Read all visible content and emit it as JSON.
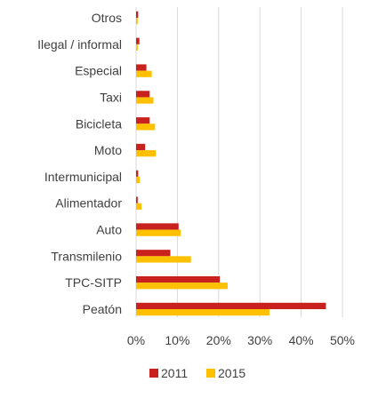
{
  "chart_data": {
    "type": "bar",
    "orientation": "horizontal",
    "categories": [
      "Otros",
      "Ilegal / informal",
      "Especial",
      "Taxi",
      "Bicicleta",
      "Moto",
      "Intermunicipal",
      "Alimentador",
      "Auto",
      "Transmilenio",
      "TPC-SITP",
      "Peatón"
    ],
    "series": [
      {
        "name": "2011",
        "color": "#c9211e",
        "values": [
          0.5,
          0.8,
          2.5,
          3.3,
          3.3,
          2.2,
          0.5,
          0.4,
          10.3,
          8.3,
          20.3,
          46.0
        ]
      },
      {
        "name": "2015",
        "color": "#ffc000",
        "values": [
          0.4,
          0.4,
          3.8,
          4.2,
          4.6,
          4.8,
          0.9,
          1.3,
          10.8,
          13.3,
          22.2,
          32.3
        ]
      }
    ],
    "xlim": [
      0,
      50
    ],
    "x_ticks": [
      "0%",
      "10%",
      "20%",
      "30%",
      "40%",
      "50%"
    ],
    "grid": "vertical",
    "legend_position": "bottom"
  }
}
